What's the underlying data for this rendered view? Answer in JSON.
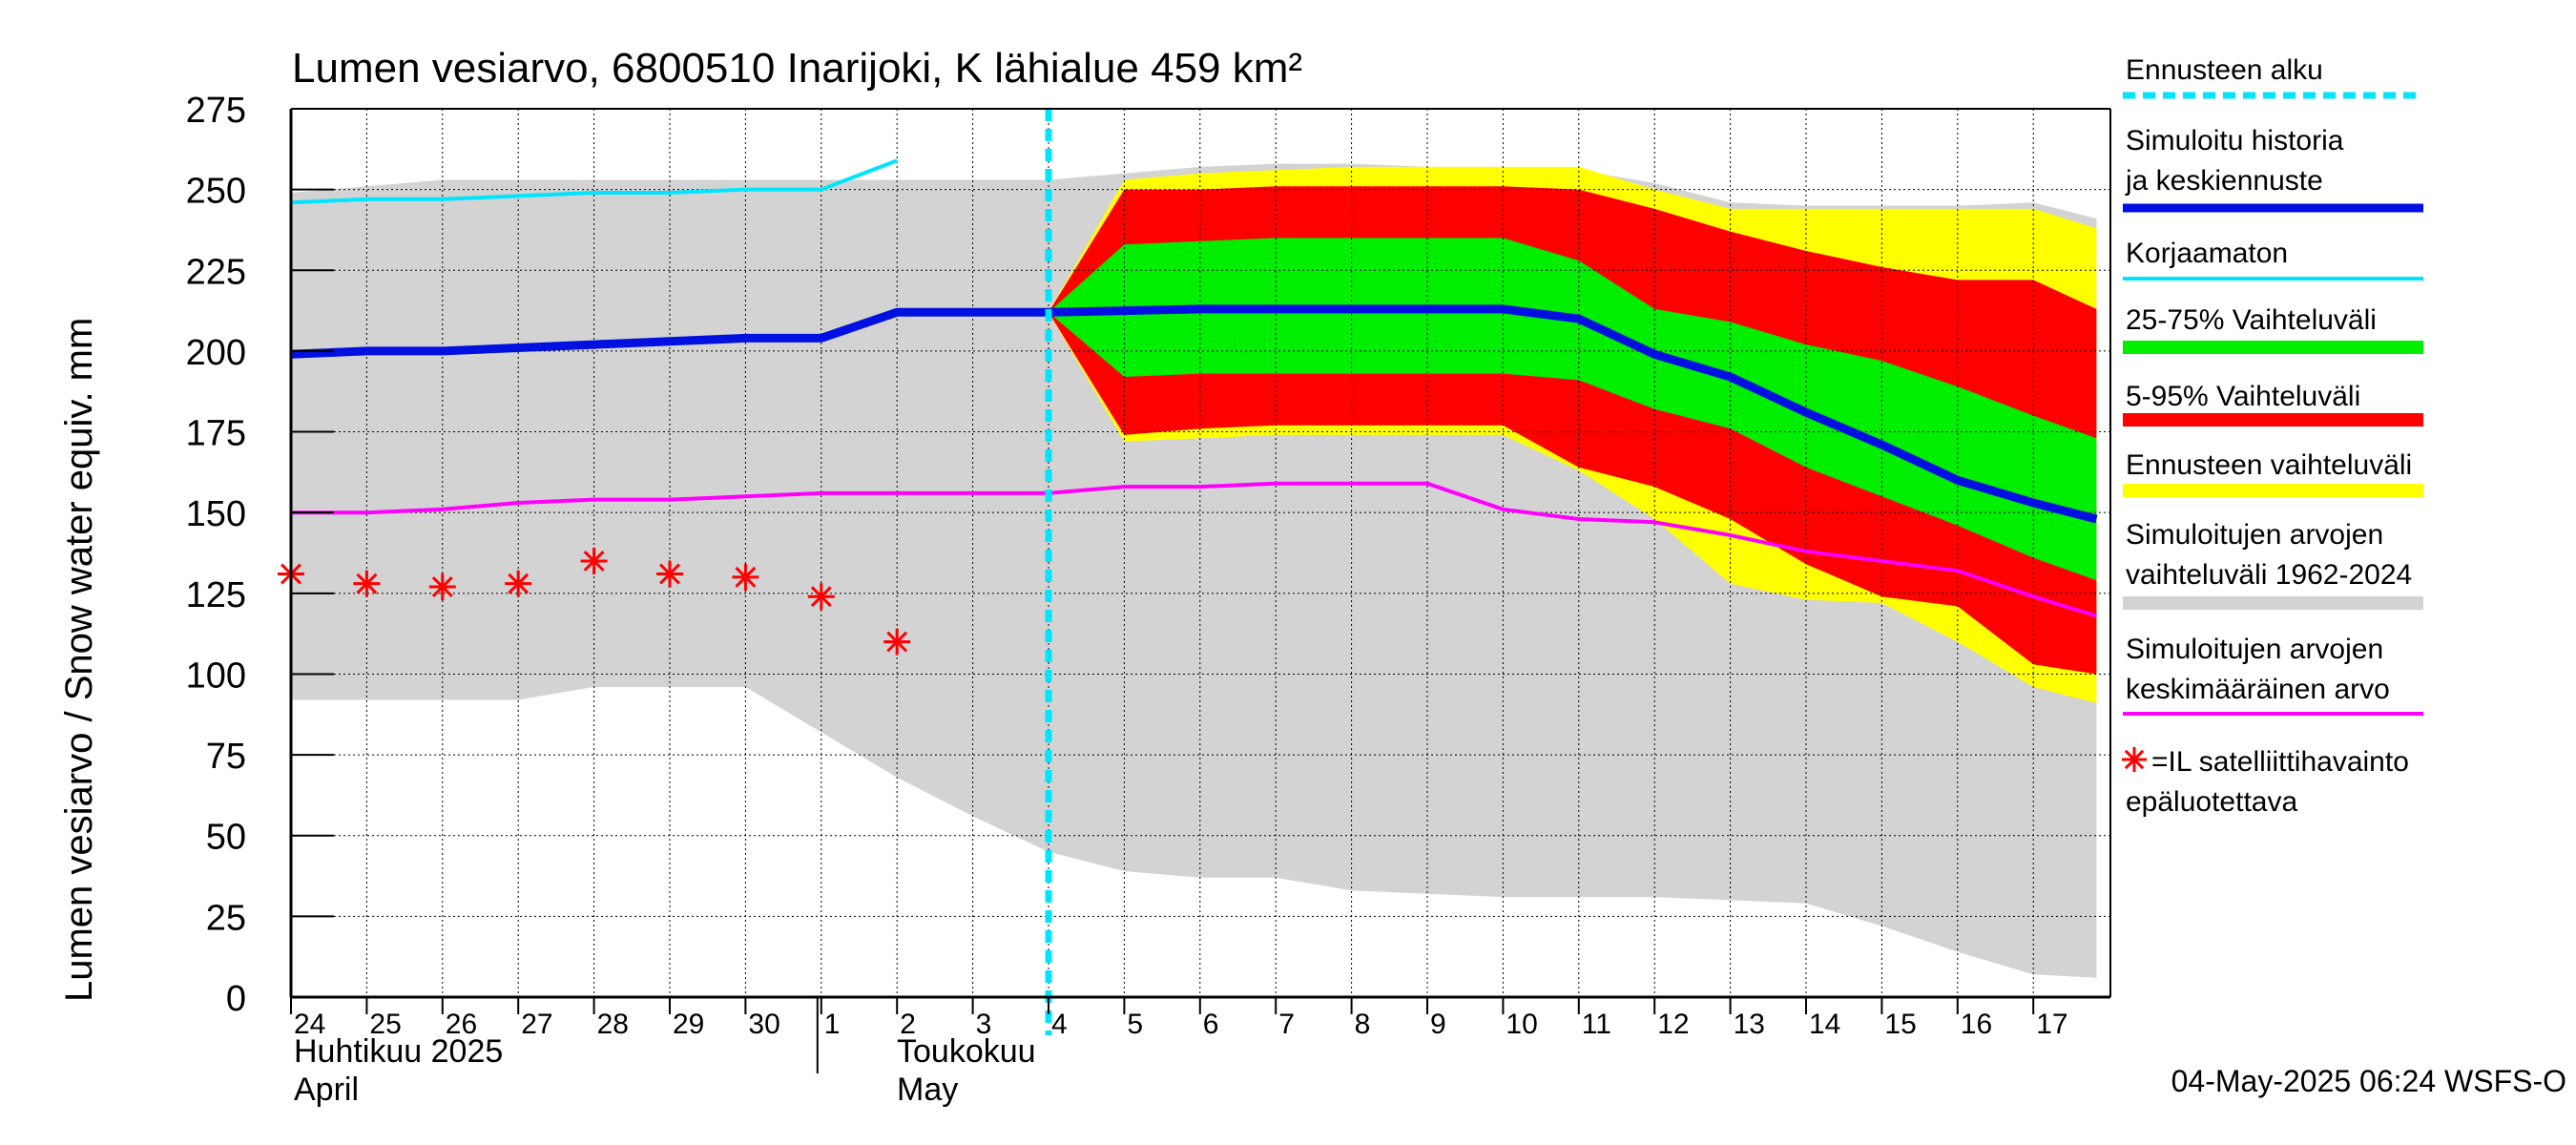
{
  "chart_data": {
    "type": "area",
    "title": "Lumen vesiarvo, 6800510 Inarijoki, K lähialue 459 km²",
    "ylabel": "Lumen vesiarvo / Snow water equiv.    mm",
    "ylim": [
      0,
      275
    ],
    "yticks": [
      0,
      25,
      50,
      75,
      100,
      125,
      150,
      175,
      200,
      225,
      250,
      275
    ],
    "grid": true,
    "legend_position": "right",
    "x_start": "2025-04-24",
    "x_end": "2025-05-17",
    "day_labels": [
      "24",
      "25",
      "26",
      "27",
      "28",
      "29",
      "30",
      "1",
      "2",
      "3",
      "4",
      "5",
      "6",
      "7",
      "8",
      "9",
      "10",
      "11",
      "12",
      "13",
      "14",
      "15",
      "16",
      "17"
    ],
    "month_labels": [
      {
        "line1": "Huhtikuu  2025",
        "line2": "April"
      },
      {
        "line1": "Toukokuu",
        "line2": "May"
      }
    ],
    "forecast_start": "2025-05-04",
    "timestamp": "04-May-2025 06:24 WSFS-O",
    "colors": {
      "sim_range": "#d3d3d3",
      "forecast_range": "#ffff00",
      "range_5_95": "#ff0000",
      "range_25_75": "#00ee00",
      "median": "#0010e0",
      "uncorrected": "#00e5ff",
      "sim_mean": "#ff00ff",
      "satellite": "#ff0000",
      "forecast_start": "#00e5ff"
    },
    "series": [
      {
        "name": "Simuloitujen arvojen vaihteluväli 1962-2024",
        "kind": "band",
        "x": [
          "2025-04-24",
          "2025-04-26",
          "2025-04-27",
          "2025-04-28",
          "2025-04-30",
          "2025-05-01",
          "2025-05-02",
          "2025-05-03",
          "2025-05-04",
          "2025-05-05",
          "2025-05-06",
          "2025-05-07",
          "2025-05-08",
          "2025-05-09",
          "2025-05-10",
          "2025-05-11",
          "2025-05-12",
          "2025-05-13",
          "2025-05-14",
          "2025-05-15",
          "2025-05-16",
          "2025-05-17",
          "2025-05-17T20:00"
        ],
        "low": [
          92,
          92,
          92,
          96,
          96,
          82,
          68,
          56,
          45,
          39,
          37,
          37,
          33,
          32,
          31,
          31,
          31,
          30,
          29,
          22,
          14,
          7,
          6
        ],
        "high": [
          249,
          253,
          253,
          253,
          253,
          253,
          253,
          253,
          253,
          255,
          257,
          258,
          258,
          257,
          257,
          256,
          252,
          246,
          245,
          245,
          245,
          246,
          241
        ]
      },
      {
        "name": "Ennusteen vaihteluväli",
        "kind": "band",
        "x": [
          "2025-05-04",
          "2025-05-05",
          "2025-05-06",
          "2025-05-07",
          "2025-05-08",
          "2025-05-09",
          "2025-05-10",
          "2025-05-11",
          "2025-05-12",
          "2025-05-13",
          "2025-05-14",
          "2025-05-15",
          "2025-05-16",
          "2025-05-17",
          "2025-05-17T20:00"
        ],
        "low": [
          212,
          172,
          173,
          174,
          174,
          174,
          174,
          163,
          148,
          128,
          123,
          122,
          110,
          96,
          91
        ],
        "high": [
          212,
          253,
          255,
          256,
          257,
          257,
          257,
          257,
          250,
          244,
          244,
          244,
          244,
          244,
          238
        ]
      },
      {
        "name": "5-95% Vaihteluväli",
        "kind": "band",
        "x": [
          "2025-05-04",
          "2025-05-05",
          "2025-05-06",
          "2025-05-07",
          "2025-05-08",
          "2025-05-09",
          "2025-05-10",
          "2025-05-11",
          "2025-05-12",
          "2025-05-13",
          "2025-05-14",
          "2025-05-15",
          "2025-05-16",
          "2025-05-17",
          "2025-05-17T20:00"
        ],
        "low": [
          212,
          174,
          176,
          177,
          177,
          177,
          177,
          164,
          158,
          148,
          134,
          124,
          121,
          103,
          100
        ],
        "high": [
          212,
          250,
          250,
          251,
          251,
          251,
          251,
          250,
          244,
          237,
          231,
          226,
          222,
          222,
          213
        ]
      },
      {
        "name": "25-75% Vaihteluväli",
        "kind": "band",
        "x": [
          "2025-05-04",
          "2025-05-05",
          "2025-05-06",
          "2025-05-07",
          "2025-05-08",
          "2025-05-09",
          "2025-05-10",
          "2025-05-11",
          "2025-05-12",
          "2025-05-13",
          "2025-05-14",
          "2025-05-15",
          "2025-05-16",
          "2025-05-17",
          "2025-05-17T20:00"
        ],
        "low": [
          212,
          192,
          193,
          193,
          193,
          193,
          193,
          191,
          182,
          176,
          164,
          155,
          146,
          136,
          129
        ],
        "high": [
          212,
          233,
          234,
          235,
          235,
          235,
          235,
          228,
          213,
          209,
          202,
          197,
          189,
          180,
          173
        ]
      },
      {
        "name": "Simuloitu historia ja keskiennuste",
        "kind": "line",
        "x": [
          "2025-04-24",
          "2025-04-25",
          "2025-04-26",
          "2025-04-27",
          "2025-04-28",
          "2025-04-29",
          "2025-04-30",
          "2025-05-01",
          "2025-05-02",
          "2025-05-03",
          "2025-05-04",
          "2025-05-05",
          "2025-05-06",
          "2025-05-07",
          "2025-05-08",
          "2025-05-09",
          "2025-05-10",
          "2025-05-11",
          "2025-05-12",
          "2025-05-13",
          "2025-05-14",
          "2025-05-15",
          "2025-05-16",
          "2025-05-17",
          "2025-05-17T20:00"
        ],
        "values": [
          199,
          200,
          200,
          201,
          202,
          203,
          204,
          204,
          212,
          212,
          212,
          212.5,
          213,
          213,
          213,
          213,
          213,
          210,
          199,
          192,
          181,
          171,
          160,
          153,
          148
        ]
      },
      {
        "name": "Korjaamaton",
        "kind": "line",
        "x": [
          "2025-04-24",
          "2025-04-25",
          "2025-04-26",
          "2025-04-27",
          "2025-04-28",
          "2025-04-29",
          "2025-04-30",
          "2025-05-01",
          "2025-05-02"
        ],
        "values": [
          246,
          247,
          247,
          248,
          249,
          249,
          250,
          250,
          259
        ]
      },
      {
        "name": "Simuloitujen arvojen keskimääräinen arvo",
        "kind": "line",
        "x": [
          "2025-04-24",
          "2025-04-25",
          "2025-04-26",
          "2025-04-27",
          "2025-04-28",
          "2025-04-29",
          "2025-04-30",
          "2025-05-01",
          "2025-05-02",
          "2025-05-03",
          "2025-05-04",
          "2025-05-05",
          "2025-05-06",
          "2025-05-07",
          "2025-05-08",
          "2025-05-09",
          "2025-05-10",
          "2025-05-11",
          "2025-05-12",
          "2025-05-13",
          "2025-05-14",
          "2025-05-15",
          "2025-05-16",
          "2025-05-17",
          "2025-05-17T20:00"
        ],
        "values": [
          150,
          150,
          151,
          153,
          154,
          154,
          155,
          156,
          156,
          156,
          156,
          158,
          158,
          159,
          159,
          159,
          151,
          148,
          147,
          143,
          138,
          135,
          132,
          124,
          118
        ]
      },
      {
        "name": "=IL satelliittihavainto epäluotettava",
        "kind": "points",
        "x": [
          "2025-04-24",
          "2025-04-25",
          "2025-04-26",
          "2025-04-27",
          "2025-04-28",
          "2025-04-29",
          "2025-04-30",
          "2025-05-01",
          "2025-05-02"
        ],
        "values": [
          131,
          128,
          127,
          128,
          135,
          131,
          130,
          124,
          110
        ]
      }
    ],
    "legend": [
      {
        "label": "Ennusteen alku",
        "style": "dash",
        "color_key": "forecast_start"
      },
      {
        "label": "Simuloitu historia ja keskiennuste",
        "style": "thick",
        "color_key": "median"
      },
      {
        "label": "Korjaamaton",
        "style": "line",
        "color_key": "uncorrected"
      },
      {
        "label": "25-75% Vaihteluväli",
        "style": "band",
        "color_key": "range_25_75"
      },
      {
        "label": "5-95% Vaihteluväli",
        "style": "band",
        "color_key": "range_5_95"
      },
      {
        "label": "Ennusteen vaihteluväli",
        "style": "band",
        "color_key": "forecast_range"
      },
      {
        "label": "Simuloitujen arvojen vaihteluväli 1962-2024",
        "style": "band",
        "color_key": "sim_range"
      },
      {
        "label": "Simuloitujen arvojen keskimääräinen arvo",
        "style": "line",
        "color_key": "sim_mean"
      },
      {
        "label": "=IL satelliittihavainto epäluotettava",
        "style": "star",
        "color_key": "satellite"
      }
    ]
  }
}
